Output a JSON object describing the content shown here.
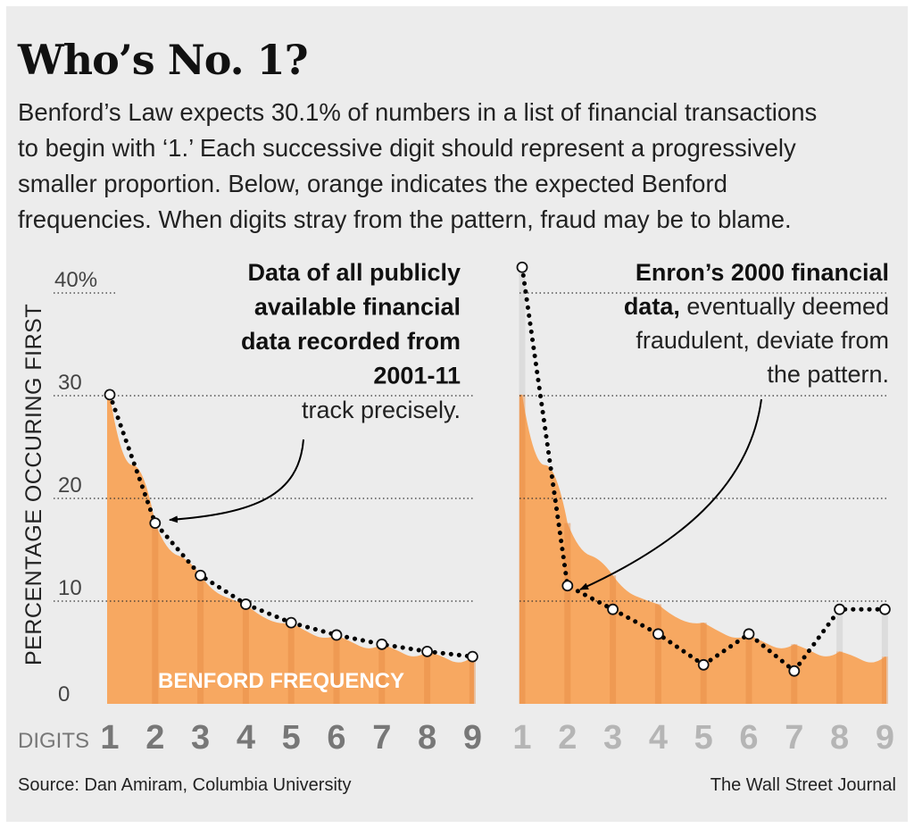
{
  "header": {
    "title": "Who’s No. 1?",
    "intro_lines": [
      "Benford’s Law expects 30.1% of numbers in a list of financial transactions",
      "to begin with ‘1.’ Each successive digit should represent a progressively",
      "smaller proportion. Below, orange indicates the expected Benford",
      "frequencies. When digits stray from the pattern, fraud may be to blame."
    ]
  },
  "footer": {
    "source": "Source: Dan Amiram, Columbia University",
    "credit": "The Wall Street Journal"
  },
  "colors": {
    "benford_fill": "#f7a861",
    "stripe": "#e48a43",
    "background": "#ececec",
    "point_fill": "#ffffff",
    "line": "#000000",
    "muted_text": "#b5b5b5",
    "axis_text": "#666666"
  },
  "chart_data": [
    {
      "type": "area",
      "yaxis_label": "PERCENTAGE OCCURING FIRST",
      "xaxis_prefix": "DIGITS",
      "categories": [
        "1",
        "2",
        "3",
        "4",
        "5",
        "6",
        "7",
        "8",
        "9"
      ],
      "ylim": [
        0,
        40
      ],
      "yticks": [
        "0",
        "10",
        "20",
        "30",
        "40%"
      ],
      "grid": "dotted lines at 10, 20, 30, 40",
      "area_label": "BENFORD FREQUENCY",
      "series": [
        {
          "values": [
            30.1,
            17.6,
            12.5,
            9.7,
            7.9,
            6.7,
            5.8,
            5.1,
            4.6
          ]
        },
        {
          "values": [
            30.1,
            17.6,
            12.5,
            9.7,
            7.9,
            6.7,
            5.8,
            5.1,
            4.6
          ]
        }
      ],
      "annotation": {
        "bold_lines": [
          "Data of all publicly",
          "available financial",
          "data recorded from",
          "2001-11"
        ],
        "normal_lines": [
          "track precisely."
        ]
      }
    },
    {
      "type": "area",
      "categories": [
        "1",
        "2",
        "3",
        "4",
        "5",
        "6",
        "7",
        "8",
        "9"
      ],
      "ylim": [
        0,
        40
      ],
      "grid": "dotted lines at 10, 20, 30, 40",
      "series": [
        {
          "values": [
            30.1,
            17.6,
            12.5,
            9.7,
            7.9,
            6.7,
            5.8,
            5.1,
            4.6
          ]
        },
        {
          "values": [
            42.5,
            11.5,
            9.2,
            6.8,
            3.8,
            6.8,
            3.2,
            9.2,
            9.2
          ]
        }
      ],
      "annotation": {
        "bold_lines": [
          "Enron’s 2000 financial",
          "data,"
        ],
        "normal_lines": [
          " eventually deemed",
          "fraudulent, deviate from",
          "the pattern."
        ]
      }
    }
  ]
}
